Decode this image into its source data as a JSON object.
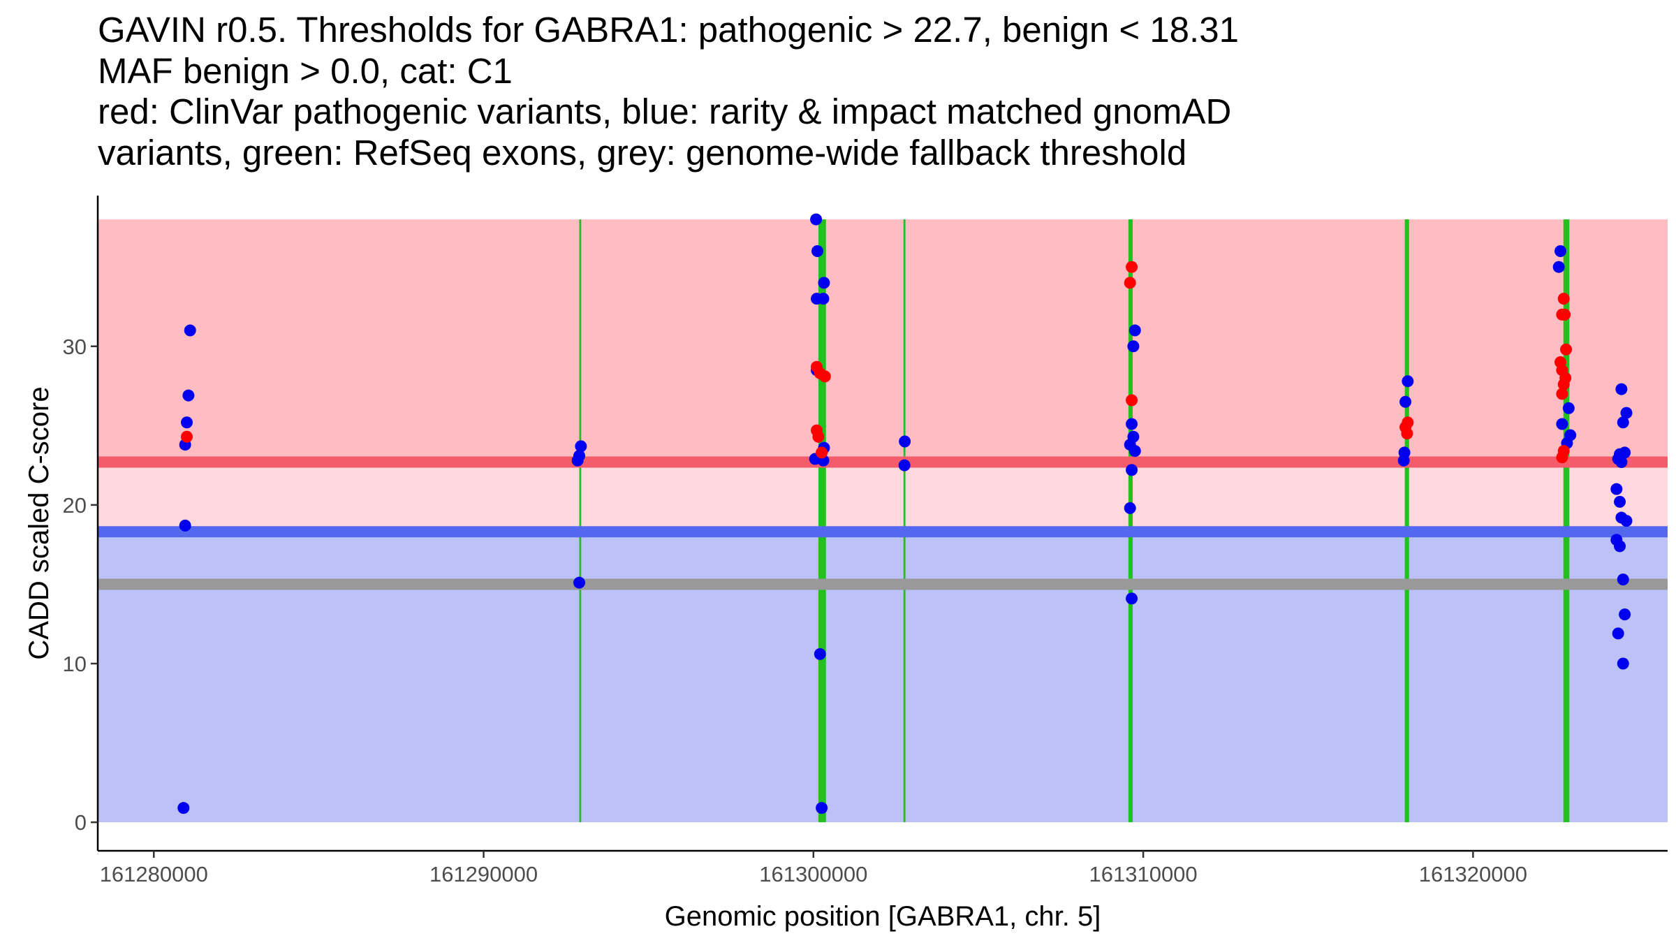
{
  "chart_data": {
    "type": "scatter",
    "title_lines": [
      "GAVIN r0.5. Thresholds for GABRA1: pathogenic > 22.7, benign < 18.31",
      "MAF benign > 0.0, cat: C1",
      "red: ClinVar pathogenic variants, blue: rarity & impact matched gnomAD",
      "variants, green: RefSeq exons, grey: genome-wide fallback threshold"
    ],
    "xlabel": "Genomic position [GABRA1, chr. 5]",
    "ylabel": "CADD scaled C-score",
    "xlim": [
      161278300,
      161325900
    ],
    "ylim": [
      -1.8,
      39.5
    ],
    "x_ticks": [
      161280000,
      161290000,
      161300000,
      161310000,
      161320000
    ],
    "y_ticks": [
      0,
      10,
      20,
      30
    ],
    "thresholds": {
      "pathogenic": 22.7,
      "benign": 18.31,
      "fallback": 15,
      "region_top": 38
    },
    "colors": {
      "pathogenic_region": "#ffbdc3",
      "intermediate_region": "#ffd8de",
      "benign_region": "#bcc1f7",
      "pathogenic_line": "#f45b6b",
      "benign_line": "#5468ef",
      "fallback_line": "#999999",
      "exon": "#22c11f",
      "clinvar_point": "#ff0000",
      "gnomad_point": "#0000ee"
    },
    "exons": [
      {
        "start": 161292900,
        "end": 161292960
      },
      {
        "start": 161300150,
        "end": 161300380
      },
      {
        "start": 161302730,
        "end": 161302790
      },
      {
        "start": 161309550,
        "end": 161309680
      },
      {
        "start": 161317930,
        "end": 161318060
      },
      {
        "start": 161322740,
        "end": 161322920
      }
    ],
    "series": [
      {
        "name": "gnomAD",
        "color": "#0000ee",
        "points": [
          [
            161281100,
            31.0
          ],
          [
            161281050,
            26.9
          ],
          [
            161281000,
            25.2
          ],
          [
            161280950,
            23.8
          ],
          [
            161280950,
            18.7
          ],
          [
            161280900,
            0.9
          ],
          [
            161292950,
            23.7
          ],
          [
            161292900,
            23.1
          ],
          [
            161292850,
            22.8
          ],
          [
            161292900,
            15.1
          ],
          [
            161300080,
            38.0
          ],
          [
            161300120,
            36.0
          ],
          [
            161300320,
            34.0
          ],
          [
            161300100,
            33.0
          ],
          [
            161300300,
            33.0
          ],
          [
            161300100,
            28.5
          ],
          [
            161300320,
            23.6
          ],
          [
            161300050,
            22.9
          ],
          [
            161300300,
            22.8
          ],
          [
            161300200,
            10.6
          ],
          [
            161300250,
            0.9
          ],
          [
            161302770,
            24.0
          ],
          [
            161302760,
            22.5
          ],
          [
            161309750,
            31.0
          ],
          [
            161309700,
            30.0
          ],
          [
            161309650,
            25.1
          ],
          [
            161309700,
            24.3
          ],
          [
            161309600,
            23.8
          ],
          [
            161309750,
            23.4
          ],
          [
            161309650,
            22.2
          ],
          [
            161309600,
            19.8
          ],
          [
            161309650,
            14.1
          ],
          [
            161318020,
            27.8
          ],
          [
            161317950,
            26.5
          ],
          [
            161317920,
            23.3
          ],
          [
            161317900,
            22.8
          ],
          [
            161322650,
            36.0
          ],
          [
            161322600,
            35.0
          ],
          [
            161322900,
            26.1
          ],
          [
            161322700,
            25.1
          ],
          [
            161322950,
            24.4
          ],
          [
            161322850,
            23.9
          ],
          [
            161324500,
            27.3
          ],
          [
            161324650,
            25.8
          ],
          [
            161324550,
            25.2
          ],
          [
            161324450,
            23.2
          ],
          [
            161324600,
            23.3
          ],
          [
            161324400,
            22.9
          ],
          [
            161324500,
            22.7
          ],
          [
            161324350,
            21.0
          ],
          [
            161324450,
            20.2
          ],
          [
            161324500,
            19.2
          ],
          [
            161324650,
            19.0
          ],
          [
            161324350,
            17.8
          ],
          [
            161324450,
            17.4
          ],
          [
            161324550,
            15.3
          ],
          [
            161324600,
            13.1
          ],
          [
            161324400,
            11.9
          ],
          [
            161324550,
            10.0
          ]
        ]
      },
      {
        "name": "ClinVar",
        "color": "#ff0000",
        "points": [
          [
            161281000,
            24.3
          ],
          [
            161300100,
            28.7
          ],
          [
            161300200,
            28.3
          ],
          [
            161300350,
            28.1
          ],
          [
            161300100,
            24.7
          ],
          [
            161300150,
            24.3
          ],
          [
            161300250,
            23.3
          ],
          [
            161309650,
            35.0
          ],
          [
            161309600,
            34.0
          ],
          [
            161309650,
            26.6
          ],
          [
            161318020,
            25.2
          ],
          [
            161317950,
            24.9
          ],
          [
            161318000,
            24.5
          ],
          [
            161322750,
            33.0
          ],
          [
            161322700,
            32.0
          ],
          [
            161322780,
            32.0
          ],
          [
            161322820,
            29.8
          ],
          [
            161322650,
            29.0
          ],
          [
            161322700,
            28.5
          ],
          [
            161322800,
            28.0
          ],
          [
            161322750,
            27.6
          ],
          [
            161322700,
            27.0
          ],
          [
            161322750,
            23.4
          ],
          [
            161322700,
            23.0
          ]
        ]
      }
    ]
  }
}
